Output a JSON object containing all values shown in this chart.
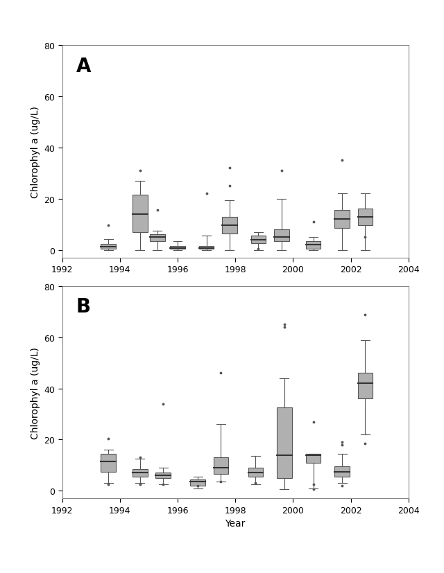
{
  "panel_A": {
    "label": "A",
    "ylabel": "Chlorophyl a (ug/L)",
    "ylim": [
      -3,
      80
    ],
    "yticks": [
      0,
      20,
      40,
      60,
      80
    ],
    "xlim": [
      1992,
      2004
    ],
    "xticks": [
      1992,
      1994,
      1996,
      1998,
      2000,
      2002,
      2004
    ],
    "boxes": [
      {
        "x": 1993.6,
        "whislo": 0.0,
        "q1": 0.3,
        "med": 1.2,
        "q3": 2.2,
        "whishi": 4.2,
        "fliers": [
          9.5
        ]
      },
      {
        "x": 1994.7,
        "whislo": 0.0,
        "q1": 7.0,
        "med": 14.0,
        "q3": 21.5,
        "whishi": 27.0,
        "fliers": [
          31.0
        ]
      },
      {
        "x": 1995.3,
        "whislo": 0.0,
        "q1": 3.5,
        "med": 5.0,
        "q3": 6.2,
        "whishi": 7.5,
        "fliers": [
          15.5
        ]
      },
      {
        "x": 1996.0,
        "whislo": 0.0,
        "q1": 0.3,
        "med": 0.8,
        "q3": 1.5,
        "whishi": 3.5,
        "fliers": []
      },
      {
        "x": 1997.0,
        "whislo": 0.0,
        "q1": 0.3,
        "med": 0.8,
        "q3": 1.5,
        "whishi": 5.5,
        "fliers": [
          22.0
        ]
      },
      {
        "x": 1997.8,
        "whislo": 0.0,
        "q1": 6.5,
        "med": 9.5,
        "q3": 13.0,
        "whishi": 19.5,
        "fliers": [
          32.0,
          25.0
        ]
      },
      {
        "x": 1998.8,
        "whislo": 0.0,
        "q1": 2.5,
        "med": 4.0,
        "q3": 5.5,
        "whishi": 7.0,
        "fliers": [
          0.3
        ]
      },
      {
        "x": 1999.6,
        "whislo": 0.0,
        "q1": 3.5,
        "med": 5.0,
        "q3": 8.0,
        "whishi": 20.0,
        "fliers": [
          31.0
        ]
      },
      {
        "x": 2000.7,
        "whislo": 0.0,
        "q1": 0.5,
        "med": 2.0,
        "q3": 3.5,
        "whishi": 5.0,
        "fliers": [
          11.0
        ]
      },
      {
        "x": 2001.7,
        "whislo": 0.0,
        "q1": 8.5,
        "med": 12.0,
        "q3": 15.5,
        "whishi": 22.0,
        "fliers": [
          35.0
        ]
      },
      {
        "x": 2002.5,
        "whislo": 0.0,
        "q1": 9.5,
        "med": 13.0,
        "q3": 16.0,
        "whishi": 22.0,
        "fliers": [
          5.0
        ]
      }
    ]
  },
  "panel_B": {
    "label": "B",
    "ylabel": "Chlorophyl a (ug/L)",
    "xlabel": "Year",
    "ylim": [
      -3,
      80
    ],
    "yticks": [
      0,
      20,
      40,
      60,
      80
    ],
    "xlim": [
      1992,
      2004
    ],
    "xticks": [
      1992,
      1994,
      1996,
      1998,
      2000,
      2002,
      2004
    ],
    "boxes": [
      {
        "x": 1993.6,
        "whislo": 3.0,
        "q1": 7.5,
        "med": 11.5,
        "q3": 14.5,
        "whishi": 16.0,
        "fliers": [
          20.5,
          2.5
        ]
      },
      {
        "x": 1994.7,
        "whislo": 3.0,
        "q1": 5.5,
        "med": 7.0,
        "q3": 8.5,
        "whishi": 12.5,
        "fliers": [
          2.5,
          13.0
        ]
      },
      {
        "x": 1995.5,
        "whislo": 2.5,
        "q1": 5.0,
        "med": 6.0,
        "q3": 7.0,
        "whishi": 9.0,
        "fliers": [
          2.5,
          34.0
        ]
      },
      {
        "x": 1996.7,
        "whislo": 1.0,
        "q1": 2.0,
        "med": 3.5,
        "q3": 4.5,
        "whishi": 5.5,
        "fliers": [
          2.0
        ]
      },
      {
        "x": 1997.5,
        "whislo": 3.5,
        "q1": 6.5,
        "med": 9.0,
        "q3": 13.0,
        "whishi": 26.0,
        "fliers": [
          46.0,
          3.5
        ]
      },
      {
        "x": 1998.7,
        "whislo": 2.5,
        "q1": 5.5,
        "med": 7.0,
        "q3": 9.0,
        "whishi": 13.5,
        "fliers": [
          3.0
        ]
      },
      {
        "x": 1999.7,
        "whislo": 0.5,
        "q1": 5.0,
        "med": 14.0,
        "q3": 32.5,
        "whishi": 44.0,
        "fliers": [
          65.0,
          64.0
        ]
      },
      {
        "x": 2000.7,
        "whislo": 1.0,
        "q1": 11.0,
        "med": 14.0,
        "q3": 14.5,
        "whishi": 14.5,
        "fliers": [
          27.0,
          2.5,
          0.5
        ]
      },
      {
        "x": 2001.7,
        "whislo": 3.0,
        "q1": 5.5,
        "med": 7.5,
        "q3": 9.5,
        "whishi": 14.5,
        "fliers": [
          19.0,
          18.0,
          2.0
        ]
      },
      {
        "x": 2002.5,
        "whislo": 22.0,
        "q1": 36.0,
        "med": 42.0,
        "q3": 46.0,
        "whishi": 59.0,
        "fliers": [
          69.0,
          18.5
        ]
      }
    ]
  },
  "box_color": "#b0b0b0",
  "box_edgecolor": "#555555",
  "median_color": "#333333",
  "whisker_color": "#555555",
  "flier_color": "#555555",
  "box_width": 0.52
}
